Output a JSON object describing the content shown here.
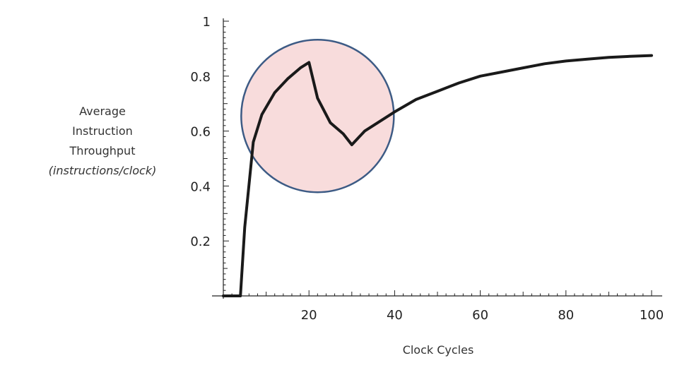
{
  "chart_data": {
    "type": "line",
    "title": "",
    "xlabel": "Clock Cycles",
    "ylabel_lines": [
      "Average",
      "Instruction",
      "Throughput",
      "(instructions/clock)"
    ],
    "xlim": [
      0,
      100
    ],
    "ylim": [
      0,
      1
    ],
    "x_ticks": [
      20,
      40,
      60,
      80,
      100
    ],
    "y_ticks": [
      0.2,
      0.4,
      0.6,
      0.8,
      1
    ],
    "y_tick_labels": [
      "0.2",
      "0.4",
      "0.6",
      "0.8",
      "1"
    ],
    "grid": false,
    "series": [
      {
        "color": "#1a1a1a",
        "x": [
          0,
          4,
          5,
          7,
          9,
          12,
          15,
          18,
          20,
          22,
          25,
          28,
          30,
          33,
          36,
          40,
          45,
          50,
          55,
          60,
          65,
          70,
          75,
          80,
          85,
          90,
          95,
          100
        ],
        "y": [
          0,
          0,
          0.25,
          0.56,
          0.66,
          0.74,
          0.79,
          0.83,
          0.85,
          0.72,
          0.63,
          0.59,
          0.55,
          0.6,
          0.63,
          0.67,
          0.715,
          0.745,
          0.775,
          0.8,
          0.815,
          0.83,
          0.845,
          0.855,
          0.862,
          0.868,
          0.872,
          0.875
        ]
      }
    ],
    "highlight": {
      "shape": "circle",
      "center": [
        22,
        0.655
      ],
      "fill": "#f8dcdc",
      "stroke": "#3d5b85"
    }
  }
}
